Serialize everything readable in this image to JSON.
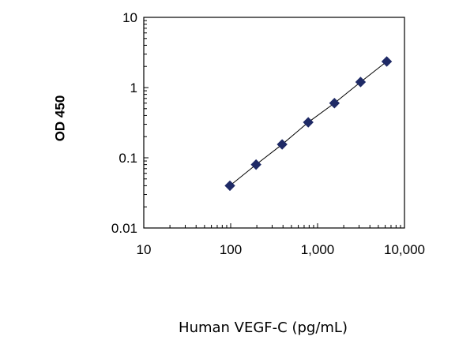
{
  "chart_data": {
    "type": "scatter",
    "title": "",
    "xlabel": "Human VEGF-C (pg/mL)",
    "ylabel": "OD 450",
    "xscale": "log",
    "yscale": "log",
    "xlim": [
      10,
      10000
    ],
    "ylim": [
      0.01,
      10
    ],
    "x_tick_labels": [
      "10",
      "100",
      "1,000",
      "10,000"
    ],
    "y_tick_labels": [
      "0.01",
      "0.1",
      "1",
      "10"
    ],
    "grid": false,
    "legend": "none",
    "marker": "diamond",
    "marker_color": "#1f2a66",
    "line_color": "#000000",
    "series": [
      {
        "x": [
          98,
          196,
          391,
          781,
          1563,
          3125,
          6250
        ],
        "y": [
          0.04,
          0.08,
          0.155,
          0.32,
          0.6,
          1.2,
          2.35
        ]
      }
    ]
  }
}
